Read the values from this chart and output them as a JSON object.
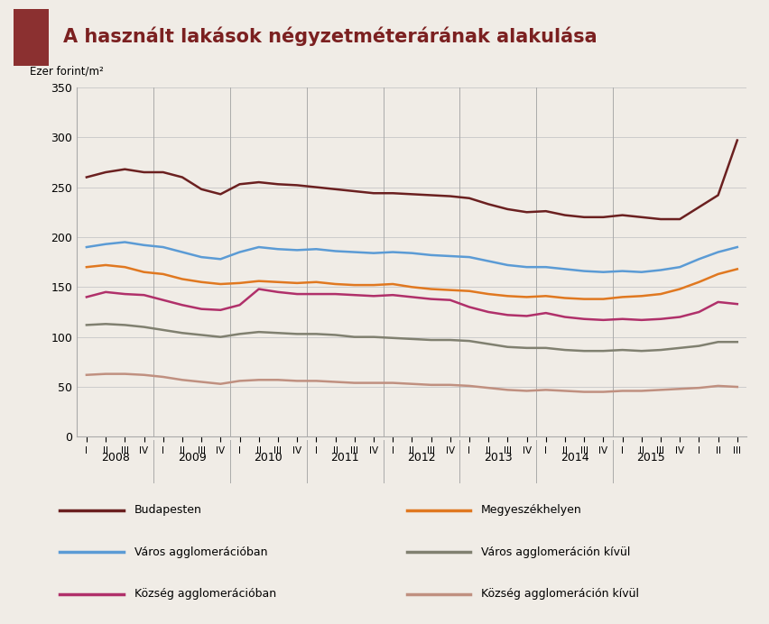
{
  "title": "A használt lakások négyzetméterárának alakulása",
  "ylabel": "Ezer forint/m²",
  "bg_color": "#f0ece6",
  "title_color": "#7b2020",
  "header_box_color": "#8b3030",
  "ylim": [
    0,
    350
  ],
  "yticks": [
    0,
    50,
    100,
    150,
    200,
    250,
    300,
    350
  ],
  "series": {
    "Budapesten": {
      "color": "#6b2020",
      "values": [
        260,
        265,
        268,
        265,
        265,
        260,
        248,
        243,
        253,
        255,
        253,
        252,
        250,
        248,
        246,
        244,
        244,
        243,
        242,
        241,
        239,
        233,
        228,
        225,
        226,
        222,
        220,
        220,
        222,
        220,
        218,
        218,
        230,
        242,
        297
      ]
    },
    "Megyeszékhelyen": {
      "color": "#e07820",
      "values": [
        170,
        172,
        170,
        165,
        163,
        158,
        155,
        153,
        154,
        156,
        155,
        154,
        155,
        153,
        152,
        152,
        153,
        150,
        148,
        147,
        146,
        143,
        141,
        140,
        141,
        139,
        138,
        138,
        140,
        141,
        143,
        148,
        155,
        163,
        168
      ]
    },
    "Város agglomerációban": {
      "color": "#5b9bd5",
      "values": [
        190,
        193,
        195,
        192,
        190,
        185,
        180,
        178,
        185,
        190,
        188,
        187,
        188,
        186,
        185,
        184,
        185,
        184,
        182,
        181,
        180,
        176,
        172,
        170,
        170,
        168,
        166,
        165,
        166,
        165,
        167,
        170,
        178,
        185,
        190
      ]
    },
    "Város agglomeráción kívül": {
      "color": "#808070",
      "values": [
        112,
        113,
        112,
        110,
        107,
        104,
        102,
        100,
        103,
        105,
        104,
        103,
        103,
        102,
        100,
        100,
        99,
        98,
        97,
        97,
        96,
        93,
        90,
        89,
        89,
        87,
        86,
        86,
        87,
        86,
        87,
        89,
        91,
        95,
        95
      ]
    },
    "Község agglomerációban": {
      "color": "#b0306a",
      "values": [
        140,
        145,
        143,
        142,
        137,
        132,
        128,
        127,
        132,
        148,
        145,
        143,
        143,
        143,
        142,
        141,
        142,
        140,
        138,
        137,
        130,
        125,
        122,
        121,
        124,
        120,
        118,
        117,
        118,
        117,
        118,
        120,
        125,
        135,
        133
      ]
    },
    "Község agglomeráción kívül": {
      "color": "#c09080",
      "values": [
        62,
        63,
        63,
        62,
        60,
        57,
        55,
        53,
        56,
        57,
        57,
        56,
        56,
        55,
        54,
        54,
        54,
        53,
        52,
        52,
        51,
        49,
        47,
        46,
        47,
        46,
        45,
        45,
        46,
        46,
        47,
        48,
        49,
        51,
        50
      ]
    }
  },
  "quarters": [
    "I",
    "II",
    "III",
    "IV",
    "I",
    "II",
    "III",
    "IV",
    "I",
    "II",
    "III",
    "IV",
    "I",
    "II",
    "III",
    "IV",
    "I",
    "II",
    "III",
    "IV",
    "I",
    "II",
    "III",
    "IV",
    "I",
    "II",
    "III",
    "IV",
    "I",
    "II",
    "III",
    "IV",
    "I",
    "II",
    "III"
  ],
  "year_positions": [
    1.5,
    5.5,
    9.5,
    13.5,
    17.5,
    21.5,
    25.5,
    29.5
  ],
  "year_labels": [
    "2008",
    "2009",
    "2010",
    "2011",
    "2012",
    "2013",
    "2014",
    "2015"
  ],
  "year_boundaries": [
    3.5,
    7.5,
    11.5,
    15.5,
    19.5,
    23.5,
    27.5
  ],
  "legend_items": [
    [
      "Budapesten",
      "#6b2020"
    ],
    [
      "Megyeszékhelyen",
      "#e07820"
    ],
    [
      "Város agglomerációban",
      "#5b9bd5"
    ],
    [
      "Város agglomeráción kívül",
      "#808070"
    ],
    [
      "Község agglomerációban",
      "#b0306a"
    ],
    [
      "Község agglomeráción kívül",
      "#c09080"
    ]
  ]
}
